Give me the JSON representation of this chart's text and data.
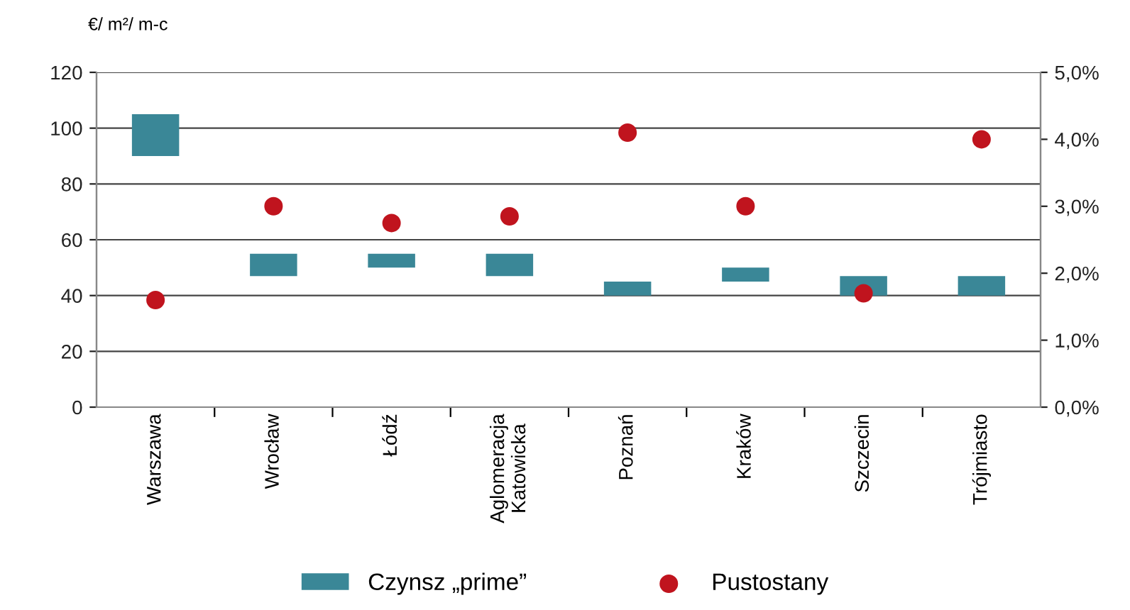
{
  "chart_data": {
    "type": "bar",
    "ylabel": "€/ m²/ m-c",
    "categories": [
      "Warszawa",
      "Wrocław",
      "Łódź",
      "Aglomeracja\nKatowicka",
      "Poznań",
      "Kraków",
      "Szczecin",
      "Trójmiasto"
    ],
    "series": [
      {
        "name": "Czynsz „prime”",
        "color": "#3a8797",
        "base": [
          90,
          47,
          50,
          47,
          40,
          45,
          40,
          40
        ],
        "values": [
          15,
          8,
          5,
          8,
          5,
          5,
          7,
          7
        ]
      },
      {
        "name": "Pustostany",
        "type": "scatter",
        "axis": "y2",
        "color": "#c0141e",
        "marker": "circle",
        "values": [
          1.6,
          3.0,
          2.75,
          2.85,
          4.1,
          3.0,
          1.7,
          4.0
        ]
      }
    ],
    "ylim": [
      0,
      120
    ],
    "yticks": [
      0,
      20,
      40,
      60,
      80,
      100,
      120
    ],
    "y2lim": [
      0,
      5
    ],
    "y2ticks": [
      {
        "value": 0,
        "label": "0,0%"
      },
      {
        "value": 1,
        "label": "1,0%"
      },
      {
        "value": 2,
        "label": "2,0%"
      },
      {
        "value": 3,
        "label": "3,0%"
      },
      {
        "value": 4,
        "label": "4,0%"
      },
      {
        "value": 5,
        "label": "5,0%"
      }
    ],
    "grid": "y",
    "legend": "bottom"
  }
}
